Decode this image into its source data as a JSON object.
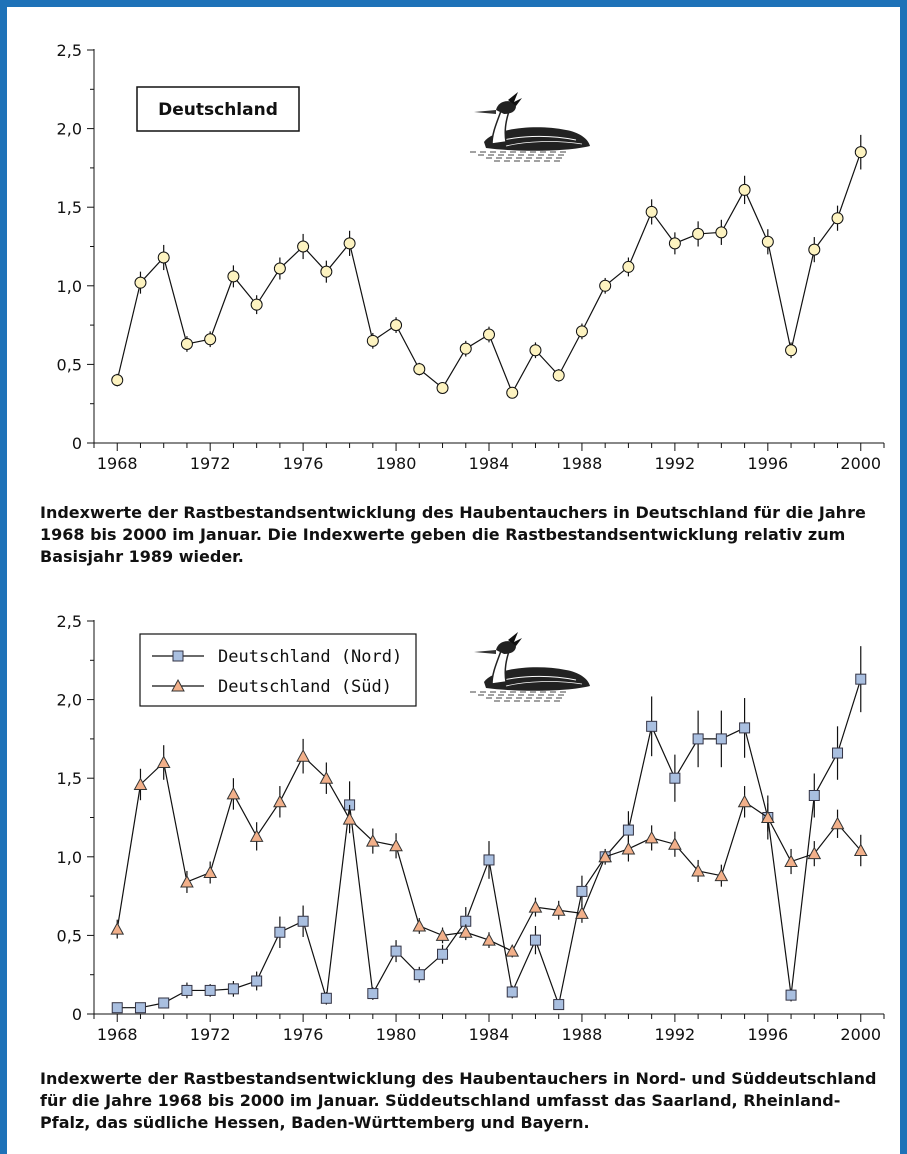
{
  "frame_color": "#1e72b8",
  "chart_data": [
    {
      "type": "line",
      "title": "Deutschland",
      "xlabel": "",
      "ylabel": "",
      "x": [
        1968,
        1969,
        1970,
        1971,
        1972,
        1973,
        1974,
        1975,
        1976,
        1977,
        1978,
        1979,
        1980,
        1981,
        1982,
        1983,
        1984,
        1985,
        1986,
        1987,
        1988,
        1989,
        1990,
        1991,
        1992,
        1993,
        1994,
        1995,
        1996,
        1997,
        1998,
        1999,
        2000
      ],
      "xlim": [
        1967,
        2001
      ],
      "ylim": [
        0,
        2.5
      ],
      "x_ticks": [
        1968,
        1972,
        1976,
        1980,
        1984,
        1988,
        1992,
        1996,
        2000
      ],
      "y_ticks": [
        0,
        0.5,
        1.0,
        1.5,
        2.0,
        2.5
      ],
      "y_tick_labels": [
        "0",
        "0,5",
        "1,0",
        "1,5",
        "2,0",
        "2,5"
      ],
      "x_tick_labels": [
        "1968",
        "1972",
        "1976",
        "1980",
        "1984",
        "1988",
        "1992",
        "1996",
        "2000"
      ],
      "grid": false,
      "series": [
        {
          "marker": "circle",
          "color": "#fdf3c0",
          "values": [
            0.4,
            1.02,
            1.18,
            0.63,
            0.66,
            1.06,
            0.88,
            1.11,
            1.25,
            1.09,
            1.27,
            0.65,
            0.75,
            0.47,
            0.35,
            0.6,
            0.69,
            0.32,
            0.59,
            0.43,
            0.71,
            1.0,
            1.12,
            1.47,
            1.27,
            1.33,
            1.34,
            1.61,
            1.28,
            0.59,
            1.23,
            1.43,
            1.85
          ],
          "errors": [
            0.04,
            0.07,
            0.08,
            0.05,
            0.05,
            0.07,
            0.06,
            0.07,
            0.08,
            0.07,
            0.08,
            0.05,
            0.05,
            0.04,
            0.03,
            0.05,
            0.05,
            0.03,
            0.05,
            0.04,
            0.05,
            0.05,
            0.06,
            0.08,
            0.07,
            0.08,
            0.08,
            0.09,
            0.08,
            0.05,
            0.08,
            0.08,
            0.11
          ]
        }
      ]
    },
    {
      "type": "line",
      "title": "",
      "xlabel": "",
      "ylabel": "",
      "legend_position": "top-left",
      "x": [
        1968,
        1969,
        1970,
        1971,
        1972,
        1973,
        1974,
        1975,
        1976,
        1977,
        1978,
        1979,
        1980,
        1981,
        1982,
        1983,
        1984,
        1985,
        1986,
        1987,
        1988,
        1989,
        1990,
        1991,
        1992,
        1993,
        1994,
        1995,
        1996,
        1997,
        1998,
        1999,
        2000
      ],
      "xlim": [
        1967,
        2001
      ],
      "ylim": [
        0,
        2.5
      ],
      "x_ticks": [
        1968,
        1972,
        1976,
        1980,
        1984,
        1988,
        1992,
        1996,
        2000
      ],
      "y_ticks": [
        0,
        0.5,
        1.0,
        1.5,
        2.0,
        2.5
      ],
      "y_tick_labels": [
        "0",
        "0,5",
        "1,0",
        "1,5",
        "2,0",
        "2,5"
      ],
      "x_tick_labels": [
        "1968",
        "1972",
        "1976",
        "1980",
        "1984",
        "1988",
        "1992",
        "1996",
        "2000"
      ],
      "grid": false,
      "series": [
        {
          "name": "Deutschland (Nord)",
          "marker": "square",
          "color": "#a9bfe0",
          "values": [
            0.04,
            0.04,
            0.07,
            0.15,
            0.15,
            0.16,
            0.21,
            0.52,
            0.59,
            0.1,
            1.33,
            0.13,
            0.4,
            0.25,
            0.38,
            0.59,
            0.98,
            0.14,
            0.47,
            0.06,
            0.78,
            1.0,
            1.17,
            1.83,
            1.5,
            1.75,
            1.75,
            1.82,
            1.25,
            0.12,
            1.39,
            1.66,
            2.13
          ],
          "errors": [
            0.02,
            0.02,
            0.03,
            0.05,
            0.04,
            0.05,
            0.06,
            0.1,
            0.1,
            0.04,
            0.15,
            0.04,
            0.07,
            0.05,
            0.06,
            0.09,
            0.12,
            0.04,
            0.09,
            0.03,
            0.1,
            0.02,
            0.12,
            0.19,
            0.15,
            0.18,
            0.18,
            0.19,
            0.14,
            0.04,
            0.14,
            0.17,
            0.21
          ]
        },
        {
          "name": "Deutschland (Süd)",
          "marker": "triangle",
          "color": "#f2b08a",
          "values": [
            0.54,
            1.46,
            1.6,
            0.84,
            0.9,
            1.4,
            1.13,
            1.35,
            1.64,
            1.5,
            1.24,
            1.1,
            1.07,
            0.56,
            0.5,
            0.52,
            0.47,
            0.4,
            0.68,
            0.66,
            0.64,
            1.0,
            1.05,
            1.12,
            1.08,
            0.91,
            0.88,
            1.35,
            1.25,
            0.97,
            1.02,
            1.21,
            1.04
          ],
          "errors": [
            0.06,
            0.1,
            0.11,
            0.07,
            0.07,
            0.1,
            0.09,
            0.1,
            0.11,
            0.1,
            0.09,
            0.08,
            0.08,
            0.05,
            0.05,
            0.05,
            0.05,
            0.04,
            0.06,
            0.06,
            0.06,
            0.05,
            0.08,
            0.08,
            0.08,
            0.07,
            0.07,
            0.1,
            0.09,
            0.08,
            0.08,
            0.09,
            0.1
          ]
        }
      ]
    }
  ],
  "captions": {
    "top": "Indexwerte der Rastbestandsentwicklung des Haubentauchers in Deutschland für die Jahre 1968 bis 2000 im Januar. Die Indexwerte geben die Rastbestandsentwicklung relativ zum Basisjahr 1989 wieder.",
    "bottom": "Indexwerte der Rastbestandsentwicklung des Haubentauchers in Nord- und Süddeutschland für die Jahre 1968 bis 2000 im Januar. Süddeutschland umfasst das Saarland, Rheinland-Pfalz, das südliche Hessen, Baden-Württemberg und Bayern."
  },
  "icons": {
    "bird": "great-crested-grebe-icon"
  }
}
